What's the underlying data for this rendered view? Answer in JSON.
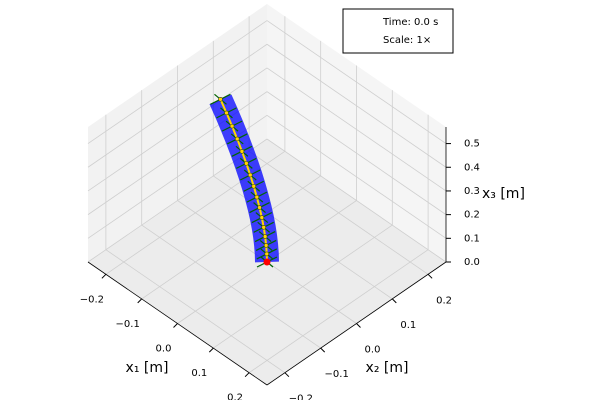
{
  "chart_data": {
    "type": "line3d",
    "xlabel": "x₁ [m]",
    "ylabel": "x₂ [m]",
    "zlabel": "x₃ [m]",
    "annotations": [
      "Time: 0.0 s",
      "Scale: 1×"
    ],
    "x": [
      0,
      -0.0007,
      -0.0028,
      -0.0062,
      -0.011,
      -0.0172,
      -0.0248,
      -0.0338,
      -0.0441,
      -0.0558,
      -0.0689,
      -0.0834,
      -0.0992,
      -0.1164,
      -0.135,
      -0.155
    ],
    "y": [
      0,
      0.0001,
      0.0004,
      0.001,
      0.0018,
      0.0028,
      0.004,
      0.0054,
      0.0071,
      0.009,
      0.0111,
      0.0134,
      0.016,
      0.0188,
      0.0218,
      0.025
    ],
    "z": [
      0,
      0.0333,
      0.0667,
      0.1,
      0.1333,
      0.1667,
      0.2,
      0.2333,
      0.2667,
      0.3,
      0.3333,
      0.3667,
      0.4,
      0.4333,
      0.4667,
      0.5
    ],
    "xlim": [
      -0.25,
      0.25
    ],
    "ylim": [
      -0.25,
      0.25
    ],
    "zlim": [
      0,
      0.57
    ],
    "xticks": [
      {
        "value": -0.2,
        "label": "−0.2"
      },
      {
        "value": -0.1,
        "label": "−0.1"
      },
      {
        "value": 0,
        "label": "0.0"
      },
      0.1,
      0.2
    ],
    "yticks": [
      {
        "value": -0.2,
        "label": "−0.2"
      },
      {
        "value": -0.1,
        "label": "−0.1"
      },
      {
        "value": 0,
        "label": "0.0"
      },
      0.1,
      0.2
    ],
    "zticks": [
      {
        "value": 0,
        "label": "0.0"
      },
      0.1,
      0.2,
      0.3,
      0.4,
      0.5
    ],
    "grid": true,
    "rod_color": "#0000ff",
    "centerline_color": "#ffd700",
    "frame_color": "#006400",
    "base_color": "#ff0000"
  }
}
